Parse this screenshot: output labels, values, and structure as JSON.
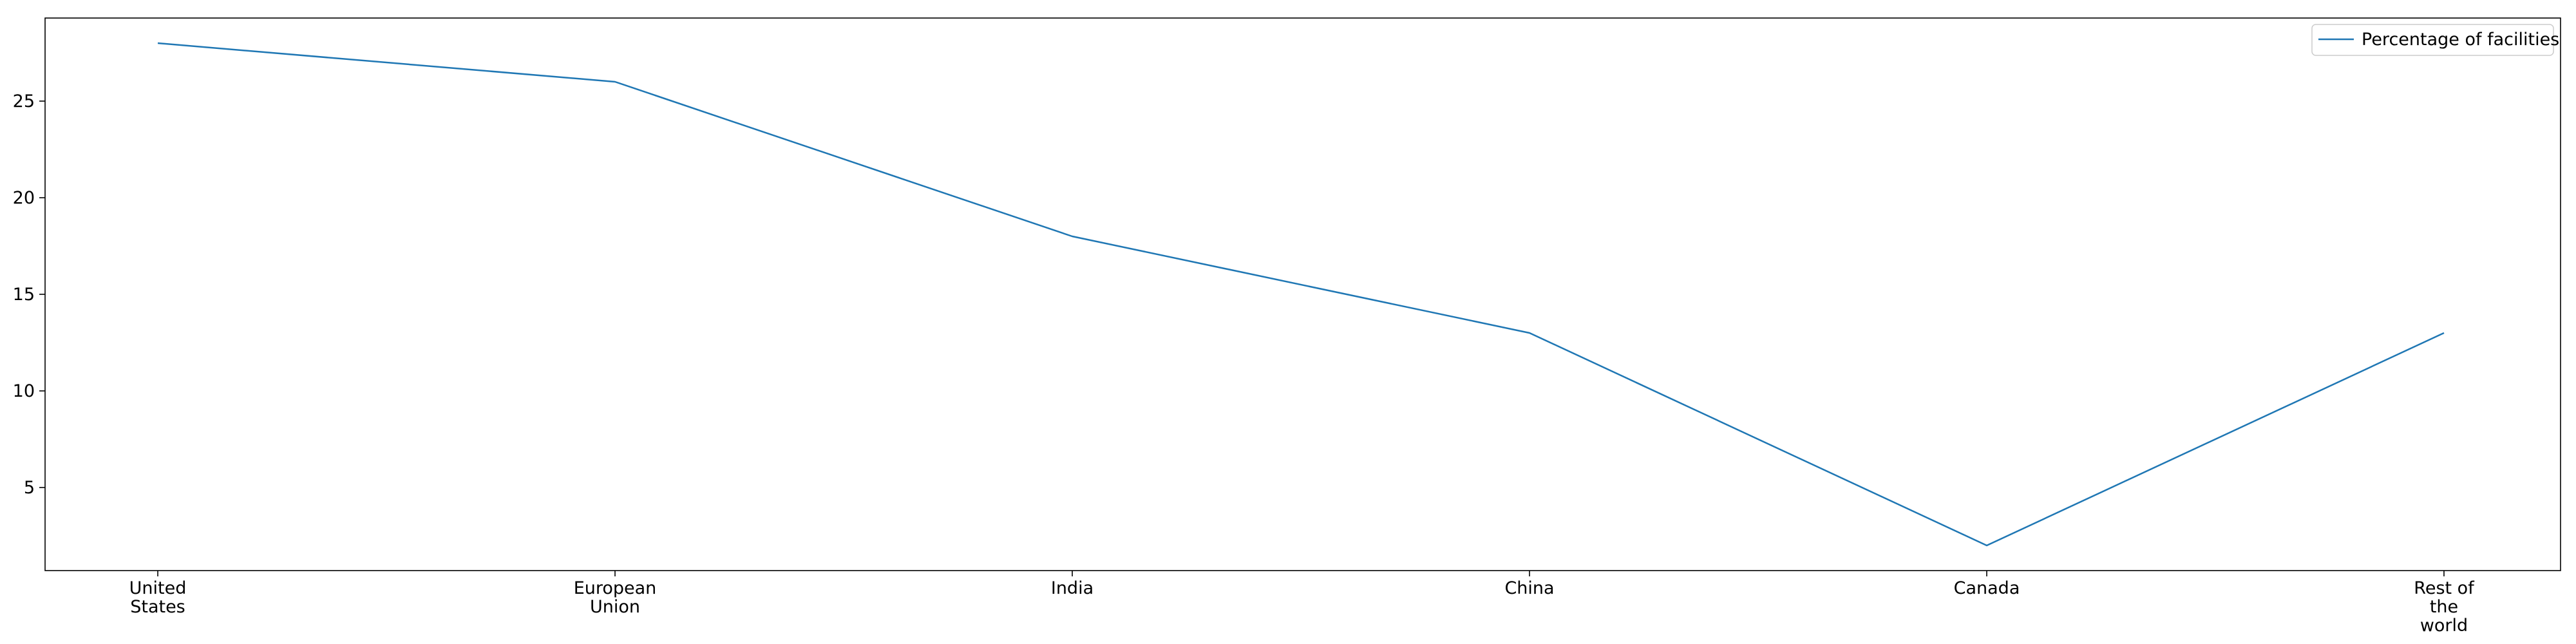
{
  "chart_data": {
    "type": "line",
    "categories": [
      [
        "United",
        "States"
      ],
      [
        "European",
        "Union"
      ],
      [
        "India"
      ],
      [
        "China"
      ],
      [
        "Canada"
      ],
      [
        "Rest of",
        "the",
        "world"
      ]
    ],
    "series": [
      {
        "name": "Percentage of facilities",
        "values": [
          28,
          26,
          18,
          13,
          2,
          13
        ],
        "color": "#1f77b4"
      }
    ],
    "yticks": [
      5,
      10,
      15,
      20,
      25
    ],
    "ylim": [
      0.7,
      29.3
    ],
    "grid": false,
    "legend": "top-right",
    "title": "",
    "xlabel": "",
    "ylabel": ""
  }
}
